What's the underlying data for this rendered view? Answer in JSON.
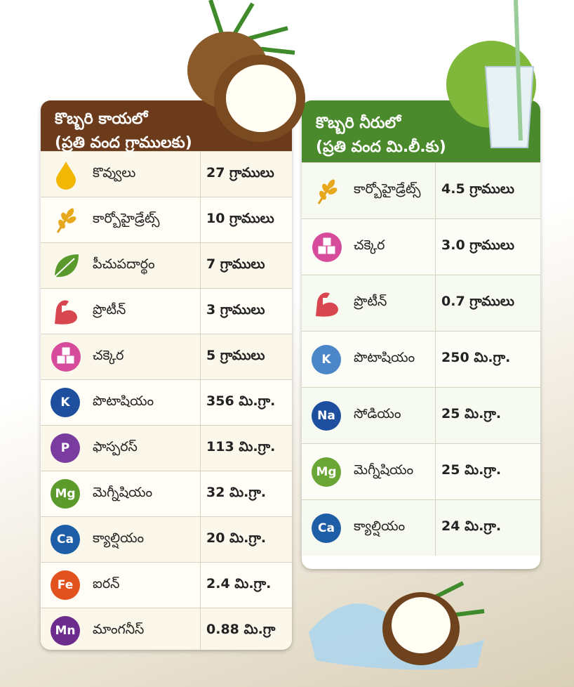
{
  "panels": [
    {
      "title": [
        "కొబ్బరి కాయలో",
        "(ప్రతి వంద గ్రాములకు)"
      ],
      "rows": [
        {
          "name": "కొవ్వులు",
          "amount": "27 గ్రాములు"
        },
        {
          "name": "కార్బోహైడ్రేట్స్",
          "amount": "10 గ్రాములు"
        },
        {
          "name": "పీచుపదార్థం",
          "amount": "7 గ్రాములు"
        },
        {
          "name": "ప్రొటీన్",
          "amount": "3 గ్రాములు"
        },
        {
          "name": "చక్కెర",
          "amount": "5 గ్రాములు"
        },
        {
          "icon": "K",
          "icon_color": "#1d4f9e",
          "name": "పొటాషియం",
          "amount": "356 మి.గ్రా."
        },
        {
          "icon": "P",
          "icon_color": "#7a3c9f",
          "name": "ఫాస్పరస్",
          "amount": "113 మి.గ్రా."
        },
        {
          "icon": "Mg",
          "icon_color": "#5c9a2c",
          "name": "మెగ్నీషియం",
          "amount": "32 మి.గ్రా."
        },
        {
          "icon": "Ca",
          "icon_color": "#1e5ea6",
          "name": "క్యాల్షియం",
          "amount": "20 మి.గ్రా."
        },
        {
          "icon": "Fe",
          "icon_color": "#e2521f",
          "name": "ఐరన్",
          "amount": "2.4 మి.గ్రా."
        },
        {
          "icon": "Mn",
          "icon_color": "#6b2c8d",
          "name": "మాంగనీస్",
          "amount": "0.88 మి.గ్రా"
        }
      ]
    },
    {
      "title": [
        "కొబ్బరి నీరులో",
        "(ప్రతి వంద మి.లీ.కు)"
      ],
      "rows": [
        {
          "name": "కార్బోహైడ్రేట్స్",
          "amount": "4.5 గ్రాములు"
        },
        {
          "name": "చక్కెర",
          "amount": "3.0 గ్రాములు"
        },
        {
          "name": "ప్రొటీన్",
          "amount": "0.7 గ్రాములు"
        },
        {
          "icon": "K",
          "icon_color": "#4a86c8",
          "name": "పొటాషియం",
          "amount": "250 మి.గ్రా."
        },
        {
          "icon": "Na",
          "icon_color": "#1d4f9e",
          "name": "సోడియం",
          "amount": "25 మి.గ్రా."
        },
        {
          "icon": "Mg",
          "icon_color": "#6aa636",
          "name": "మెగ్నీషియం",
          "amount": "25 మి.గ్రా."
        },
        {
          "icon": "Ca",
          "icon_color": "#1e5ea6",
          "name": "క్యాల్షియం",
          "amount": "24 మి.గ్రా."
        }
      ]
    }
  ]
}
